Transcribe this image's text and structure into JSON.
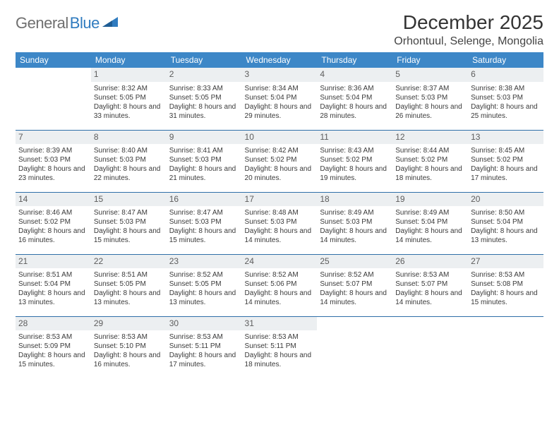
{
  "logo": {
    "text1": "General",
    "text2": "Blue",
    "color1": "#6f6f6f",
    "color2": "#2f7bbf",
    "mark_color": "#2f7bbf"
  },
  "header": {
    "month_title": "December 2025",
    "location": "Orhontuul, Selenge, Mongolia"
  },
  "calendar": {
    "header_bg": "#3d87c7",
    "header_fg": "#ffffff",
    "daynum_bg": "#eceff1",
    "rule_color": "#2f6fa8",
    "day_headers": [
      "Sunday",
      "Monday",
      "Tuesday",
      "Wednesday",
      "Thursday",
      "Friday",
      "Saturday"
    ],
    "weeks": [
      [
        {
          "day": null
        },
        {
          "day": 1,
          "sunrise": "Sunrise: 8:32 AM",
          "sunset": "Sunset: 5:05 PM",
          "daylight": "Daylight: 8 hours and 33 minutes."
        },
        {
          "day": 2,
          "sunrise": "Sunrise: 8:33 AM",
          "sunset": "Sunset: 5:05 PM",
          "daylight": "Daylight: 8 hours and 31 minutes."
        },
        {
          "day": 3,
          "sunrise": "Sunrise: 8:34 AM",
          "sunset": "Sunset: 5:04 PM",
          "daylight": "Daylight: 8 hours and 29 minutes."
        },
        {
          "day": 4,
          "sunrise": "Sunrise: 8:36 AM",
          "sunset": "Sunset: 5:04 PM",
          "daylight": "Daylight: 8 hours and 28 minutes."
        },
        {
          "day": 5,
          "sunrise": "Sunrise: 8:37 AM",
          "sunset": "Sunset: 5:03 PM",
          "daylight": "Daylight: 8 hours and 26 minutes."
        },
        {
          "day": 6,
          "sunrise": "Sunrise: 8:38 AM",
          "sunset": "Sunset: 5:03 PM",
          "daylight": "Daylight: 8 hours and 25 minutes."
        }
      ],
      [
        {
          "day": 7,
          "sunrise": "Sunrise: 8:39 AM",
          "sunset": "Sunset: 5:03 PM",
          "daylight": "Daylight: 8 hours and 23 minutes."
        },
        {
          "day": 8,
          "sunrise": "Sunrise: 8:40 AM",
          "sunset": "Sunset: 5:03 PM",
          "daylight": "Daylight: 8 hours and 22 minutes."
        },
        {
          "day": 9,
          "sunrise": "Sunrise: 8:41 AM",
          "sunset": "Sunset: 5:03 PM",
          "daylight": "Daylight: 8 hours and 21 minutes."
        },
        {
          "day": 10,
          "sunrise": "Sunrise: 8:42 AM",
          "sunset": "Sunset: 5:02 PM",
          "daylight": "Daylight: 8 hours and 20 minutes."
        },
        {
          "day": 11,
          "sunrise": "Sunrise: 8:43 AM",
          "sunset": "Sunset: 5:02 PM",
          "daylight": "Daylight: 8 hours and 19 minutes."
        },
        {
          "day": 12,
          "sunrise": "Sunrise: 8:44 AM",
          "sunset": "Sunset: 5:02 PM",
          "daylight": "Daylight: 8 hours and 18 minutes."
        },
        {
          "day": 13,
          "sunrise": "Sunrise: 8:45 AM",
          "sunset": "Sunset: 5:02 PM",
          "daylight": "Daylight: 8 hours and 17 minutes."
        }
      ],
      [
        {
          "day": 14,
          "sunrise": "Sunrise: 8:46 AM",
          "sunset": "Sunset: 5:02 PM",
          "daylight": "Daylight: 8 hours and 16 minutes."
        },
        {
          "day": 15,
          "sunrise": "Sunrise: 8:47 AM",
          "sunset": "Sunset: 5:03 PM",
          "daylight": "Daylight: 8 hours and 15 minutes."
        },
        {
          "day": 16,
          "sunrise": "Sunrise: 8:47 AM",
          "sunset": "Sunset: 5:03 PM",
          "daylight": "Daylight: 8 hours and 15 minutes."
        },
        {
          "day": 17,
          "sunrise": "Sunrise: 8:48 AM",
          "sunset": "Sunset: 5:03 PM",
          "daylight": "Daylight: 8 hours and 14 minutes."
        },
        {
          "day": 18,
          "sunrise": "Sunrise: 8:49 AM",
          "sunset": "Sunset: 5:03 PM",
          "daylight": "Daylight: 8 hours and 14 minutes."
        },
        {
          "day": 19,
          "sunrise": "Sunrise: 8:49 AM",
          "sunset": "Sunset: 5:04 PM",
          "daylight": "Daylight: 8 hours and 14 minutes."
        },
        {
          "day": 20,
          "sunrise": "Sunrise: 8:50 AM",
          "sunset": "Sunset: 5:04 PM",
          "daylight": "Daylight: 8 hours and 13 minutes."
        }
      ],
      [
        {
          "day": 21,
          "sunrise": "Sunrise: 8:51 AM",
          "sunset": "Sunset: 5:04 PM",
          "daylight": "Daylight: 8 hours and 13 minutes."
        },
        {
          "day": 22,
          "sunrise": "Sunrise: 8:51 AM",
          "sunset": "Sunset: 5:05 PM",
          "daylight": "Daylight: 8 hours and 13 minutes."
        },
        {
          "day": 23,
          "sunrise": "Sunrise: 8:52 AM",
          "sunset": "Sunset: 5:05 PM",
          "daylight": "Daylight: 8 hours and 13 minutes."
        },
        {
          "day": 24,
          "sunrise": "Sunrise: 8:52 AM",
          "sunset": "Sunset: 5:06 PM",
          "daylight": "Daylight: 8 hours and 14 minutes."
        },
        {
          "day": 25,
          "sunrise": "Sunrise: 8:52 AM",
          "sunset": "Sunset: 5:07 PM",
          "daylight": "Daylight: 8 hours and 14 minutes."
        },
        {
          "day": 26,
          "sunrise": "Sunrise: 8:53 AM",
          "sunset": "Sunset: 5:07 PM",
          "daylight": "Daylight: 8 hours and 14 minutes."
        },
        {
          "day": 27,
          "sunrise": "Sunrise: 8:53 AM",
          "sunset": "Sunset: 5:08 PM",
          "daylight": "Daylight: 8 hours and 15 minutes."
        }
      ],
      [
        {
          "day": 28,
          "sunrise": "Sunrise: 8:53 AM",
          "sunset": "Sunset: 5:09 PM",
          "daylight": "Daylight: 8 hours and 15 minutes."
        },
        {
          "day": 29,
          "sunrise": "Sunrise: 8:53 AM",
          "sunset": "Sunset: 5:10 PM",
          "daylight": "Daylight: 8 hours and 16 minutes."
        },
        {
          "day": 30,
          "sunrise": "Sunrise: 8:53 AM",
          "sunset": "Sunset: 5:11 PM",
          "daylight": "Daylight: 8 hours and 17 minutes."
        },
        {
          "day": 31,
          "sunrise": "Sunrise: 8:53 AM",
          "sunset": "Sunset: 5:11 PM",
          "daylight": "Daylight: 8 hours and 18 minutes."
        },
        {
          "day": null
        },
        {
          "day": null
        },
        {
          "day": null
        }
      ]
    ]
  }
}
